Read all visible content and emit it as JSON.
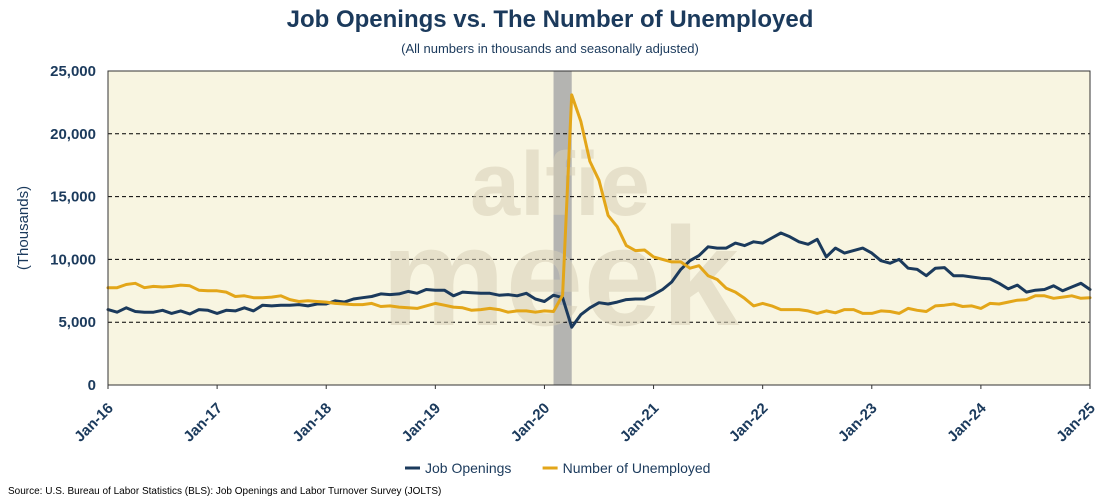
{
  "header": {
    "title": "Job Openings vs. The Number of Unemployed",
    "subtitle": "(All numbers in thousands and seasonally adjusted)"
  },
  "source": "Source: U.S. Bureau of Labor Statistics (BLS): Job Openings and Labor Turnover Survey (JOLTS)",
  "colors": {
    "plot_background": "#f8f5e1",
    "job_openings": "#1b3a5c",
    "unemployed": "#e3a619",
    "recession_band": "#a8a8a8",
    "axis_text": "#1b3a5c",
    "gridline": "#000000"
  },
  "chart_data": {
    "type": "line",
    "title": "Job Openings vs. The Number of Unemployed",
    "subtitle": "(All numbers in thousands and seasonally adjusted)",
    "ylabel": "(Thousands)",
    "xlabel": "",
    "ylim": [
      0,
      25000
    ],
    "y_ticks": [
      0,
      5000,
      10000,
      15000,
      20000,
      25000
    ],
    "y_tick_labels": [
      "0",
      "5,000",
      "10,000",
      "15,000",
      "20,000",
      "25,000"
    ],
    "x_range": [
      "2016-01",
      "2025-01"
    ],
    "x_ticks": [
      "2016-01",
      "2017-01",
      "2018-01",
      "2019-01",
      "2020-01",
      "2021-01",
      "2022-01",
      "2023-01",
      "2024-01",
      "2025-01"
    ],
    "x_tick_labels": [
      "Jan-16",
      "Jan-17",
      "Jan-18",
      "Jan-19",
      "Jan-20",
      "Jan-21",
      "Jan-22",
      "Jan-23",
      "Jan-24",
      "Jan-25"
    ],
    "grid": "horizontal dashed",
    "legend_position": "bottom-center",
    "shaded_periods": [
      {
        "start": "2020-02",
        "end": "2020-04"
      }
    ],
    "series": [
      {
        "name": "Job Openings",
        "color": "#1b3a5c",
        "x": [
          "2016-01",
          "2016-02",
          "2016-03",
          "2016-04",
          "2016-05",
          "2016-06",
          "2016-07",
          "2016-08",
          "2016-09",
          "2016-10",
          "2016-11",
          "2016-12",
          "2017-01",
          "2017-02",
          "2017-03",
          "2017-04",
          "2017-05",
          "2017-06",
          "2017-07",
          "2017-08",
          "2017-09",
          "2017-10",
          "2017-11",
          "2017-12",
          "2018-01",
          "2018-02",
          "2018-03",
          "2018-04",
          "2018-05",
          "2018-06",
          "2018-07",
          "2018-08",
          "2018-09",
          "2018-10",
          "2018-11",
          "2018-12",
          "2019-01",
          "2019-02",
          "2019-03",
          "2019-04",
          "2019-05",
          "2019-06",
          "2019-07",
          "2019-08",
          "2019-09",
          "2019-10",
          "2019-11",
          "2019-12",
          "2020-01",
          "2020-02",
          "2020-03",
          "2020-04",
          "2020-05",
          "2020-06",
          "2020-07",
          "2020-08",
          "2020-09",
          "2020-10",
          "2020-11",
          "2020-12",
          "2021-01",
          "2021-02",
          "2021-03",
          "2021-04",
          "2021-05",
          "2021-06",
          "2021-07",
          "2021-08",
          "2021-09",
          "2021-10",
          "2021-11",
          "2021-12",
          "2022-01",
          "2022-02",
          "2022-03",
          "2022-04",
          "2022-05",
          "2022-06",
          "2022-07",
          "2022-08",
          "2022-09",
          "2022-10",
          "2022-11",
          "2022-12",
          "2023-01",
          "2023-02",
          "2023-03",
          "2023-04",
          "2023-05",
          "2023-06",
          "2023-07",
          "2023-08",
          "2023-09",
          "2023-10",
          "2023-11",
          "2023-12",
          "2024-01",
          "2024-02",
          "2024-03",
          "2024-04",
          "2024-05",
          "2024-06",
          "2024-07",
          "2024-08",
          "2024-09",
          "2024-10",
          "2024-11",
          "2024-12",
          "2025-01"
        ],
        "values": [
          6000,
          5800,
          6150,
          5850,
          5800,
          5800,
          5950,
          5700,
          5900,
          5650,
          6000,
          5950,
          5700,
          5950,
          5900,
          6150,
          5900,
          6350,
          6300,
          6350,
          6350,
          6400,
          6300,
          6450,
          6450,
          6700,
          6600,
          6850,
          6950,
          7050,
          7250,
          7200,
          7250,
          7450,
          7300,
          7600,
          7550,
          7550,
          7100,
          7400,
          7350,
          7300,
          7300,
          7150,
          7200,
          7100,
          7300,
          6850,
          6650,
          7150,
          6950,
          4600,
          5600,
          6150,
          6550,
          6450,
          6600,
          6800,
          6850,
          6850,
          7200,
          7600,
          8200,
          9200,
          9900,
          10300,
          11000,
          10900,
          10900,
          11300,
          11100,
          11400,
          11300,
          11700,
          12100,
          11800,
          11400,
          11200,
          11600,
          10200,
          10900,
          10500,
          10700,
          10900,
          10500,
          9900,
          9700,
          10000,
          9300,
          9200,
          8700,
          9300,
          9350,
          8700,
          8700,
          8600,
          8500,
          8450,
          8100,
          7650,
          7950,
          7400,
          7550,
          7600,
          7900,
          7500,
          7800,
          8100,
          7600
        ]
      },
      {
        "name": "Number of Unemployed",
        "color": "#e3a619",
        "x": [
          "2016-01",
          "2016-02",
          "2016-03",
          "2016-04",
          "2016-05",
          "2016-06",
          "2016-07",
          "2016-08",
          "2016-09",
          "2016-10",
          "2016-11",
          "2016-12",
          "2017-01",
          "2017-02",
          "2017-03",
          "2017-04",
          "2017-05",
          "2017-06",
          "2017-07",
          "2017-08",
          "2017-09",
          "2017-10",
          "2017-11",
          "2017-12",
          "2018-01",
          "2018-02",
          "2018-03",
          "2018-04",
          "2018-05",
          "2018-06",
          "2018-07",
          "2018-08",
          "2018-09",
          "2018-10",
          "2018-11",
          "2018-12",
          "2019-01",
          "2019-02",
          "2019-03",
          "2019-04",
          "2019-05",
          "2019-06",
          "2019-07",
          "2019-08",
          "2019-09",
          "2019-10",
          "2019-11",
          "2019-12",
          "2020-01",
          "2020-02",
          "2020-03",
          "2020-04",
          "2020-05",
          "2020-06",
          "2020-07",
          "2020-08",
          "2020-09",
          "2020-10",
          "2020-11",
          "2020-12",
          "2021-01",
          "2021-02",
          "2021-03",
          "2021-04",
          "2021-05",
          "2021-06",
          "2021-07",
          "2021-08",
          "2021-09",
          "2021-10",
          "2021-11",
          "2021-12",
          "2022-01",
          "2022-02",
          "2022-03",
          "2022-04",
          "2022-05",
          "2022-06",
          "2022-07",
          "2022-08",
          "2022-09",
          "2022-10",
          "2022-11",
          "2022-12",
          "2023-01",
          "2023-02",
          "2023-03",
          "2023-04",
          "2023-05",
          "2023-06",
          "2023-07",
          "2023-08",
          "2023-09",
          "2023-10",
          "2023-11",
          "2023-12",
          "2024-01",
          "2024-02",
          "2024-03",
          "2024-04",
          "2024-05",
          "2024-06",
          "2024-07",
          "2024-08",
          "2024-09",
          "2024-10",
          "2024-11",
          "2024-12",
          "2025-01"
        ],
        "values": [
          7750,
          7750,
          8000,
          8100,
          7750,
          7850,
          7800,
          7850,
          7950,
          7900,
          7550,
          7500,
          7500,
          7400,
          7050,
          7100,
          6950,
          6950,
          7000,
          7100,
          6800,
          6650,
          6700,
          6650,
          6600,
          6500,
          6450,
          6400,
          6400,
          6500,
          6250,
          6300,
          6200,
          6150,
          6100,
          6300,
          6500,
          6350,
          6200,
          6150,
          5950,
          6000,
          6100,
          6000,
          5800,
          5900,
          5900,
          5800,
          5900,
          5850,
          7150,
          23100,
          21000,
          17800,
          16300,
          13500,
          12600,
          11100,
          10700,
          10750,
          10200,
          10000,
          9800,
          9800,
          9300,
          9500,
          8700,
          8400,
          7700,
          7400,
          6900,
          6300,
          6500,
          6300,
          6000,
          6000,
          6000,
          5900,
          5700,
          5900,
          5750,
          6000,
          6000,
          5700,
          5700,
          5900,
          5850,
          5700,
          6100,
          5950,
          5850,
          6300,
          6350,
          6450,
          6250,
          6300,
          6100,
          6500,
          6450,
          6600,
          6750,
          6800,
          7100,
          7100,
          6900,
          7000,
          7100,
          6900,
          6950
        ]
      }
    ]
  }
}
